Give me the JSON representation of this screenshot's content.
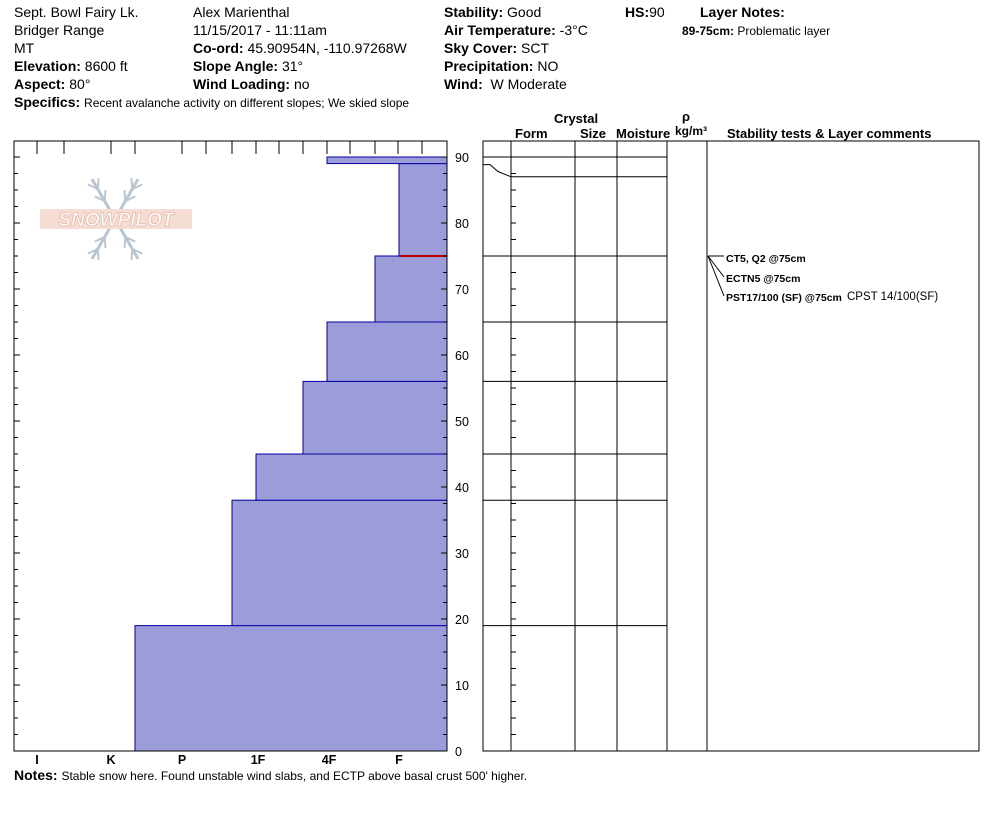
{
  "header": {
    "location": "Sept. Bowl Fairy Lk.",
    "range": "Bridger Range",
    "state": "MT",
    "elevation_label": "Elevation:",
    "elevation": "8600 ft",
    "aspect_label": "Aspect:",
    "aspect": "80°",
    "specifics_label": "Specifics:",
    "specifics": "Recent avalanche activity on different slopes;  We skied slope",
    "observer": "Alex Marienthal",
    "datetime": "11/15/2017 - 11:11am",
    "coord_label": "Co-ord:",
    "coord": "45.90954N, -110.97268W",
    "slope_label": "Slope Angle:",
    "slope": "31°",
    "wind_loading_label": "Wind Loading:",
    "wind_loading": "no",
    "stability_label": "Stability:",
    "stability": "Good",
    "air_temp_label": "Air Temperature:",
    "air_temp": "-3°C",
    "sky_label": "Sky Cover:",
    "sky": "SCT",
    "precip_label": "Precipitation:",
    "precip": "NO",
    "wind_label": "Wind:",
    "wind": "W Moderate",
    "hs_label": "HS:",
    "hs": "90",
    "layer_notes_label": "Layer Notes:",
    "layer_notes": [
      {
        "range": "89-75cm:",
        "text": "Problematic layer"
      }
    ]
  },
  "columns": {
    "crystal": "Crystal",
    "form": "Form",
    "size": "Size",
    "moisture": "Moisture",
    "rho": "ρ",
    "density_unit": "kg/m³",
    "comments": "Stability tests & Layer comments"
  },
  "notes_label": "Notes:",
  "notes": "Stable snow here. Found unstable wind slabs, and ECTP above basal crust 500' higher.",
  "logo_text": "SNOWPILOT",
  "stability_tests": [
    {
      "text": "CT5, Q2 @75cm",
      "depth": 75
    },
    {
      "text": "ECTN5 @75cm",
      "depth": 75
    },
    {
      "text": "PST17/100 (SF) @75cm",
      "extra": "CPST 14/100(SF)",
      "depth": 75
    }
  ],
  "colors": {
    "layer_fill": "#9c9cd8",
    "layer_border": "#0000a0",
    "weak_layer": "#c00000"
  },
  "chart_data": {
    "type": "bar",
    "x_categories": [
      "I",
      "K",
      "P",
      "1F",
      "4F",
      "F"
    ],
    "y_ticks": [
      0,
      10,
      20,
      30,
      40,
      50,
      60,
      70,
      80,
      90
    ],
    "ylim": [
      0,
      92.5
    ],
    "xlabel": "",
    "ylabel": "",
    "layers": [
      {
        "bottom": 0,
        "top": 19,
        "hardness": "P+"
      },
      {
        "bottom": 19,
        "top": 38,
        "hardness": "1F-"
      },
      {
        "bottom": 38,
        "top": 45,
        "hardness": "1F+"
      },
      {
        "bottom": 45,
        "top": 56,
        "hardness": "4F-"
      },
      {
        "bottom": 56,
        "top": 65,
        "hardness": "4F"
      },
      {
        "bottom": 65,
        "top": 75,
        "hardness": "4F+"
      },
      {
        "bottom": 75,
        "top": 89,
        "hardness": "F"
      },
      {
        "bottom": 89,
        "top": 90,
        "hardness": "4F"
      }
    ],
    "weak_layer_depth": 75
  }
}
